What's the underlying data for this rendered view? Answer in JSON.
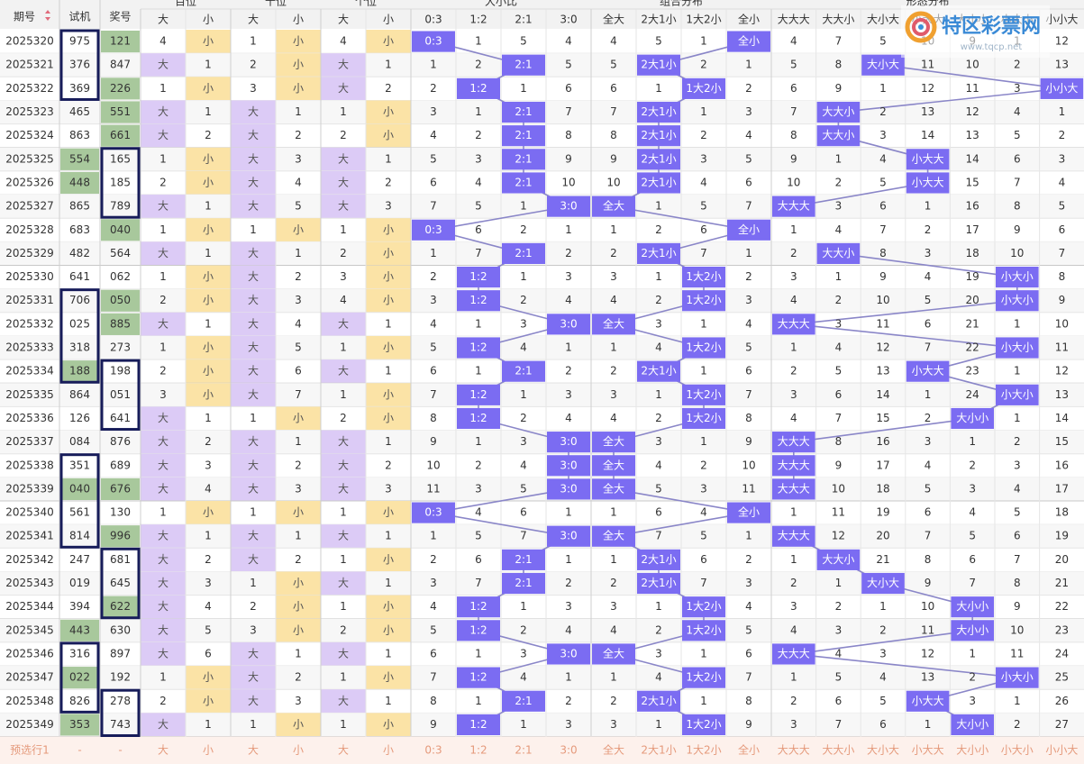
{
  "header": {
    "groups": [
      "百位",
      "十位",
      "个位",
      "大小比",
      "组合分布",
      "形态分布"
    ],
    "columns": [
      "期号",
      "试机",
      "奖号",
      "大",
      "小",
      "大",
      "小",
      "大",
      "小",
      "0:3",
      "1:2",
      "2:1",
      "3:0",
      "全大",
      "2大1小",
      "1大2小",
      "全小",
      "大大大",
      "大大小",
      "大小大",
      "小大大",
      "大小小",
      "小大小",
      "小小大"
    ]
  },
  "highlight_color": "#a8c89c",
  "rows": [
    {
      "issue": "2025320",
      "test": "975",
      "prize": "121",
      "green": [
        "prize"
      ],
      "cells": [
        4,
        "小",
        1,
        "小",
        4,
        "小",
        "0:3",
        1,
        5,
        4,
        4,
        5,
        1,
        "全小",
        4,
        7,
        5,
        10,
        9,
        1,
        12
      ]
    },
    {
      "issue": "2025321",
      "test": "376",
      "prize": "847",
      "cells": [
        "大",
        1,
        2,
        "小",
        "大",
        1,
        1,
        2,
        "2:1",
        5,
        5,
        "2大1小",
        2,
        1,
        5,
        8,
        "大小大",
        11,
        10,
        2,
        13
      ]
    },
    {
      "issue": "2025322",
      "test": "369",
      "prize": "226",
      "green": [
        "prize"
      ],
      "cells": [
        1,
        "小",
        3,
        "小",
        "大",
        2,
        2,
        "1:2",
        1,
        6,
        6,
        1,
        "1大2小",
        2,
        6,
        9,
        1,
        12,
        11,
        3,
        "小小大"
      ]
    },
    {
      "issue": "2025323",
      "test": "465",
      "prize": "551",
      "green": [
        "prize"
      ],
      "cells": [
        "大",
        1,
        "大",
        1,
        1,
        "小",
        3,
        1,
        "2:1",
        7,
        7,
        "2大1小",
        1,
        3,
        7,
        "大大小",
        2,
        13,
        12,
        4,
        1
      ]
    },
    {
      "issue": "2025324",
      "test": "863",
      "prize": "661",
      "green": [
        "prize"
      ],
      "cells": [
        "大",
        2,
        "大",
        2,
        2,
        "小",
        4,
        2,
        "2:1",
        8,
        8,
        "2大1小",
        2,
        4,
        8,
        "大大小",
        3,
        14,
        13,
        5,
        2
      ]
    },
    {
      "issue": "2025325",
      "test": "554",
      "prize": "165",
      "green": [
        "test"
      ],
      "cells": [
        1,
        "小",
        "大",
        3,
        "大",
        1,
        5,
        3,
        "2:1",
        9,
        9,
        "2大1小",
        3,
        5,
        9,
        1,
        4,
        "小大大",
        14,
        6,
        3
      ]
    },
    {
      "issue": "2025326",
      "test": "448",
      "prize": "185",
      "green": [
        "test"
      ],
      "cells": [
        2,
        "小",
        "大",
        4,
        "大",
        2,
        6,
        4,
        "2:1",
        10,
        10,
        "2大1小",
        4,
        6,
        10,
        2,
        5,
        "小大大",
        15,
        7,
        4
      ]
    },
    {
      "issue": "2025327",
      "test": "865",
      "prize": "789",
      "cells": [
        "大",
        1,
        "大",
        5,
        "大",
        3,
        7,
        5,
        1,
        "3:0",
        "全大",
        1,
        5,
        7,
        "大大大",
        3,
        6,
        1,
        16,
        8,
        5
      ]
    },
    {
      "issue": "2025328",
      "test": "683",
      "prize": "040",
      "green": [
        "prize"
      ],
      "cells": [
        1,
        "小",
        1,
        "小",
        1,
        "小",
        "0:3",
        6,
        2,
        1,
        1,
        2,
        6,
        "全小",
        1,
        4,
        7,
        2,
        17,
        9,
        6
      ]
    },
    {
      "issue": "2025329",
      "test": "482",
      "prize": "564",
      "cells": [
        "大",
        1,
        "大",
        1,
        2,
        "小",
        1,
        7,
        "2:1",
        2,
        2,
        "2大1小",
        7,
        1,
        2,
        "大大小",
        8,
        3,
        18,
        10,
        7
      ]
    },
    {
      "issue": "2025330",
      "test": "641",
      "prize": "062",
      "cells": [
        1,
        "小",
        "大",
        2,
        3,
        "小",
        2,
        "1:2",
        1,
        3,
        3,
        1,
        "1大2小",
        2,
        3,
        1,
        9,
        4,
        19,
        "小大小",
        8
      ]
    },
    {
      "issue": "2025331",
      "test": "706",
      "prize": "050",
      "green": [
        "prize"
      ],
      "cells": [
        2,
        "小",
        "大",
        3,
        4,
        "小",
        3,
        "1:2",
        2,
        4,
        4,
        2,
        "1大2小",
        3,
        4,
        2,
        10,
        5,
        20,
        "小大小",
        9
      ]
    },
    {
      "issue": "2025332",
      "test": "025",
      "prize": "885",
      "green": [
        "prize"
      ],
      "cells": [
        "大",
        1,
        "大",
        4,
        "大",
        1,
        4,
        1,
        3,
        "3:0",
        "全大",
        3,
        1,
        4,
        "大大大",
        3,
        11,
        6,
        21,
        1,
        10
      ]
    },
    {
      "issue": "2025333",
      "test": "318",
      "prize": "273",
      "cells": [
        1,
        "小",
        "大",
        5,
        1,
        "小",
        5,
        "1:2",
        4,
        1,
        1,
        4,
        "1大2小",
        5,
        1,
        4,
        12,
        7,
        22,
        "小大小",
        11
      ]
    },
    {
      "issue": "2025334",
      "test": "188",
      "prize": "198",
      "green": [
        "test"
      ],
      "cells": [
        2,
        "小",
        "大",
        6,
        "大",
        1,
        6,
        1,
        "2:1",
        2,
        2,
        "2大1小",
        1,
        6,
        2,
        5,
        13,
        "小大大",
        23,
        1,
        12
      ]
    },
    {
      "issue": "2025335",
      "test": "864",
      "prize": "051",
      "cells": [
        3,
        "小",
        "大",
        7,
        1,
        "小",
        7,
        "1:2",
        1,
        3,
        3,
        1,
        "1大2小",
        7,
        3,
        6,
        14,
        1,
        24,
        "小大小",
        13
      ]
    },
    {
      "issue": "2025336",
      "test": "126",
      "prize": "641",
      "cells": [
        "大",
        1,
        1,
        "小",
        2,
        "小",
        8,
        "1:2",
        2,
        4,
        4,
        2,
        "1大2小",
        8,
        4,
        7,
        15,
        2,
        "大小小",
        1,
        14
      ]
    },
    {
      "issue": "2025337",
      "test": "084",
      "prize": "876",
      "cells": [
        "大",
        2,
        "大",
        1,
        "大",
        1,
        9,
        1,
        3,
        "3:0",
        "全大",
        3,
        1,
        9,
        "大大大",
        8,
        16,
        3,
        1,
        2,
        15
      ]
    },
    {
      "issue": "2025338",
      "test": "351",
      "prize": "689",
      "cells": [
        "大",
        3,
        "大",
        2,
        "大",
        2,
        10,
        2,
        4,
        "3:0",
        "全大",
        4,
        2,
        10,
        "大大大",
        9,
        17,
        4,
        2,
        3,
        16
      ]
    },
    {
      "issue": "2025339",
      "test": "040",
      "prize": "676",
      "green": [
        "test",
        "prize"
      ],
      "cells": [
        "大",
        4,
        "大",
        3,
        "大",
        3,
        11,
        3,
        5,
        "3:0",
        "全大",
        5,
        3,
        11,
        "大大大",
        10,
        18,
        5,
        3,
        4,
        17
      ]
    },
    {
      "issue": "2025340",
      "test": "561",
      "prize": "130",
      "cells": [
        1,
        "小",
        1,
        "小",
        1,
        "小",
        "0:3",
        4,
        6,
        1,
        1,
        6,
        4,
        "全小",
        1,
        11,
        19,
        6,
        4,
        5,
        18
      ]
    },
    {
      "issue": "2025341",
      "test": "814",
      "prize": "996",
      "green": [
        "prize"
      ],
      "cells": [
        "大",
        1,
        "大",
        1,
        "大",
        1,
        1,
        5,
        7,
        "3:0",
        "全大",
        7,
        5,
        1,
        "大大大",
        12,
        20,
        7,
        5,
        6,
        19
      ]
    },
    {
      "issue": "2025342",
      "test": "247",
      "prize": "681",
      "cells": [
        "大",
        2,
        "大",
        2,
        1,
        "小",
        2,
        6,
        "2:1",
        1,
        1,
        "2大1小",
        6,
        2,
        1,
        "大大小",
        21,
        8,
        6,
        7,
        20
      ]
    },
    {
      "issue": "2025343",
      "test": "019",
      "prize": "645",
      "cells": [
        "大",
        3,
        1,
        "小",
        "大",
        1,
        3,
        7,
        "2:1",
        2,
        2,
        "2大1小",
        7,
        3,
        2,
        1,
        "大小大",
        9,
        7,
        8,
        21
      ]
    },
    {
      "issue": "2025344",
      "test": "394",
      "prize": "622",
      "green": [
        "prize"
      ],
      "cells": [
        "大",
        4,
        2,
        "小",
        1,
        "小",
        4,
        "1:2",
        1,
        3,
        3,
        1,
        "1大2小",
        4,
        3,
        2,
        1,
        10,
        "大小小",
        9,
        22
      ]
    },
    {
      "issue": "2025345",
      "test": "443",
      "prize": "630",
      "green": [
        "test"
      ],
      "cells": [
        "大",
        5,
        3,
        "小",
        2,
        "小",
        5,
        "1:2",
        2,
        4,
        4,
        2,
        "1大2小",
        5,
        4,
        3,
        2,
        11,
        "大小小",
        10,
        23
      ]
    },
    {
      "issue": "2025346",
      "test": "316",
      "prize": "897",
      "cells": [
        "大",
        6,
        "大",
        1,
        "大",
        1,
        6,
        1,
        3,
        "3:0",
        "全大",
        3,
        1,
        6,
        "大大大",
        4,
        3,
        12,
        1,
        11,
        24
      ]
    },
    {
      "issue": "2025347",
      "test": "022",
      "prize": "192",
      "green": [
        "test"
      ],
      "cells": [
        1,
        "小",
        "大",
        2,
        1,
        "小",
        7,
        "1:2",
        4,
        1,
        1,
        4,
        "1大2小",
        7,
        1,
        5,
        4,
        13,
        2,
        "小大小",
        25
      ]
    },
    {
      "issue": "2025348",
      "test": "826",
      "prize": "278",
      "cells": [
        2,
        "小",
        "大",
        3,
        "大",
        1,
        8,
        1,
        "2:1",
        2,
        2,
        "2大1小",
        1,
        8,
        2,
        6,
        5,
        "小大大",
        3,
        1,
        26
      ]
    },
    {
      "issue": "2025349",
      "test": "353",
      "prize": "743",
      "green": [
        "test"
      ],
      "cells": [
        "大",
        1,
        1,
        "小",
        1,
        "小",
        9,
        "1:2",
        1,
        3,
        3,
        1,
        "1大2小",
        9,
        3,
        7,
        6,
        1,
        "大小小",
        2,
        27
      ]
    }
  ],
  "footer": [
    "预选行1",
    "-",
    "-",
    "大",
    "小",
    "大",
    "小",
    "大",
    "小",
    "0:3",
    "1:2",
    "2:1",
    "3:0",
    "全大",
    "2大1小",
    "1大2小",
    "全小",
    "大大大",
    "大大小",
    "大小大",
    "小大大",
    "大小小",
    "小大小",
    "小小大"
  ],
  "logo": {
    "name": "特区彩票网",
    "url": "www.tqcp.net"
  }
}
